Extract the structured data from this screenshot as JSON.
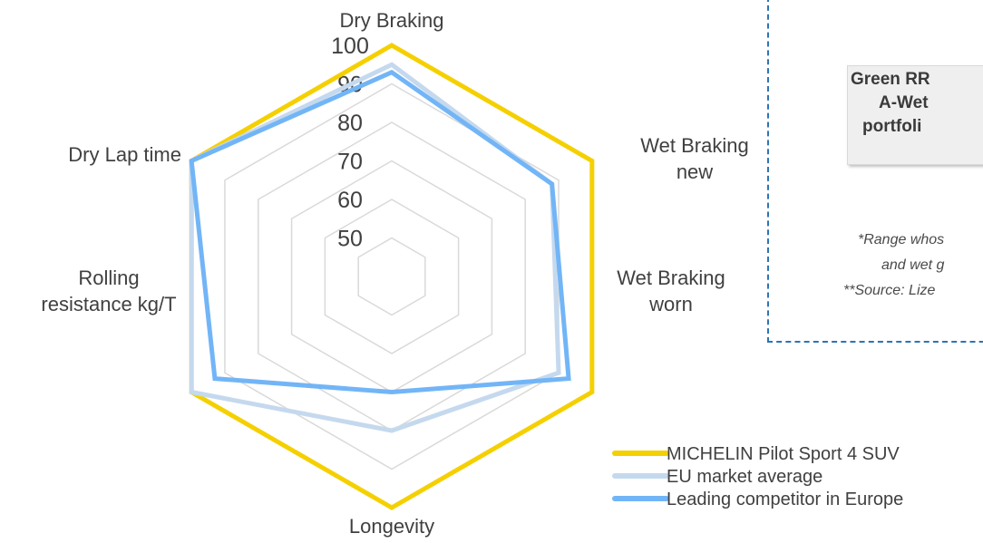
{
  "chart_data": {
    "type": "radar",
    "axes": [
      "Dry Braking",
      "Wet Braking new",
      "Wet Braking worn",
      "Longevity",
      "Rolling resistance kg/T",
      "Dry Lap time"
    ],
    "axis_label_lines": [
      [
        "Dry Braking"
      ],
      [
        "Wet Braking",
        "new"
      ],
      [
        "Wet Braking",
        "worn"
      ],
      [
        "Longevity"
      ],
      [
        "Rolling",
        "resistance kg/T"
      ],
      [
        "Dry Lap time"
      ]
    ],
    "r_ticks": [
      "50",
      "60",
      "70",
      "80",
      "90",
      "100"
    ],
    "r_range": [
      40,
      100
    ],
    "series": [
      {
        "name": "MICHELIN Pilot Sport 4 SUV",
        "color": "#f5d000",
        "values": [
          100,
          100,
          100,
          100,
          100,
          100
        ]
      },
      {
        "name": "EU market average",
        "color": "#c5d9ee",
        "values": [
          95,
          88,
          90,
          80,
          100,
          100
        ]
      },
      {
        "name": "Leading competitor in Europe",
        "color": "#72b5f7",
        "values": [
          93,
          88,
          93,
          70,
          93,
          100
        ]
      }
    ],
    "legend_position": "bottom-right",
    "grid": true
  },
  "callout": {
    "lines": [
      "Green RR",
      "A-Wet",
      "portfoli"
    ]
  },
  "notes": [
    "*Range whos",
    "and wet g",
    "**Source: Lize"
  ]
}
